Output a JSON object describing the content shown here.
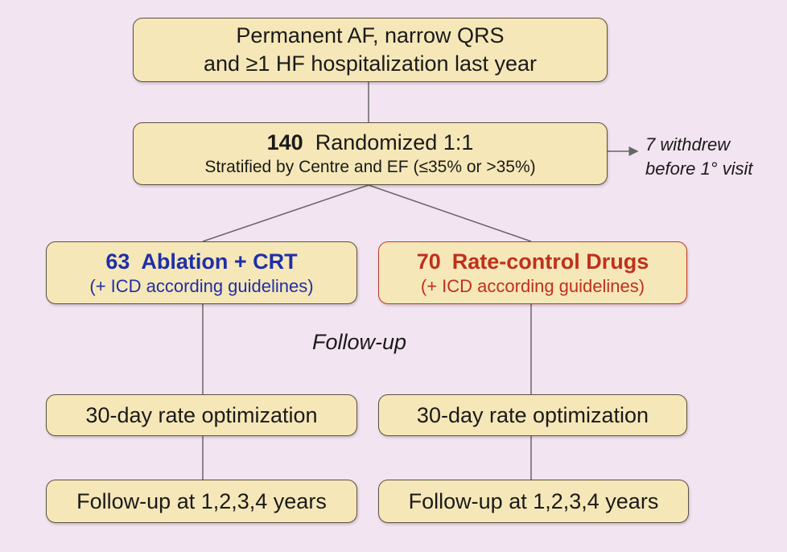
{
  "enrollment": {
    "line1": "Permanent AF, narrow QRS",
    "line2": "and ≥1 HF hospitalization last year"
  },
  "randomization": {
    "count": "140",
    "label": "Randomized 1:1",
    "stratification": "Stratified by Centre and EF (≤35% or >35%)"
  },
  "withdrawal": {
    "line1": "7 withdrew",
    "line2": "before 1° visit"
  },
  "arms": {
    "ablation": {
      "count": "63",
      "label": "Ablation + CRT",
      "note": "(+ ICD according guidelines)",
      "color": "#1f2fa8"
    },
    "drugs": {
      "count": "70",
      "label": "Rate-control Drugs",
      "note": "(+ ICD according guidelines)",
      "color": "#c0301c"
    }
  },
  "followup_label": "Follow-up",
  "steps": {
    "optimization_left": "30-day rate optimization",
    "optimization_right": "30-day rate optimization",
    "followup_left": "Follow-up at 1,2,3,4 years",
    "followup_right": "Follow-up at 1,2,3,4 years"
  },
  "colors": {
    "background": "#f3e4f1",
    "box_fill": "#f6e7b8",
    "box_border": "#5a5040",
    "connector": "#666666"
  }
}
